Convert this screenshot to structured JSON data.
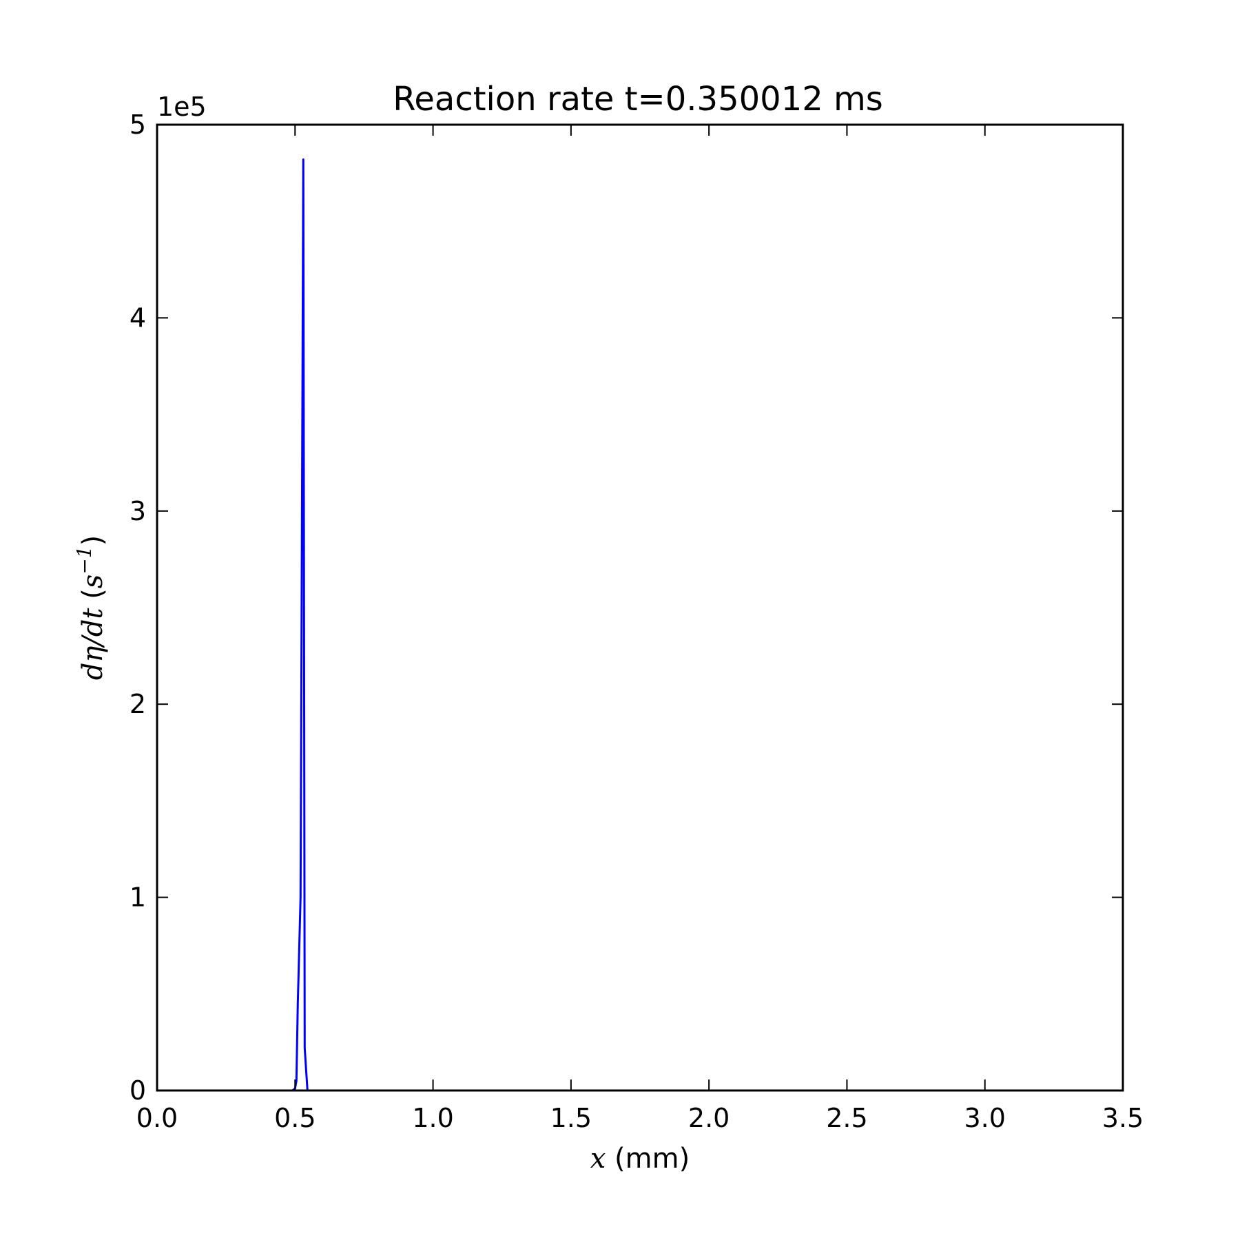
{
  "chart_data": {
    "type": "line",
    "title": "Reaction rate t=0.350012 ms",
    "xlabel_math": "x",
    "xlabel_unit": " (mm)",
    "ylabel_math": "dη/dt",
    "ylabel_unit_open": " (",
    "ylabel_unit_base": "s",
    "ylabel_unit_sup": "−1",
    "ylabel_unit_close": ")",
    "y_offset_label": "1e5",
    "xlim": [
      0.0,
      3.5
    ],
    "ylim": [
      0,
      5
    ],
    "xticks": [
      0.0,
      0.5,
      1.0,
      1.5,
      2.0,
      2.5,
      3.0,
      3.5
    ],
    "xtick_labels": [
      "0.0",
      "0.5",
      "1.0",
      "1.5",
      "2.0",
      "2.5",
      "3.0",
      "3.5"
    ],
    "yticks": [
      0,
      1,
      2,
      3,
      4,
      5
    ],
    "ytick_labels": [
      "0",
      "1",
      "2",
      "3",
      "4",
      "5"
    ],
    "grid": false,
    "series": [
      {
        "color": "#0000ff",
        "x": [
          0.0,
          0.49,
          0.5,
          0.505,
          0.51,
          0.52,
          0.53,
          0.535,
          0.545,
          3.5
        ],
        "y": [
          0,
          0,
          0.01,
          0.05,
          0.45,
          1.0,
          4.82,
          0.22,
          0,
          0
        ]
      }
    ]
  }
}
